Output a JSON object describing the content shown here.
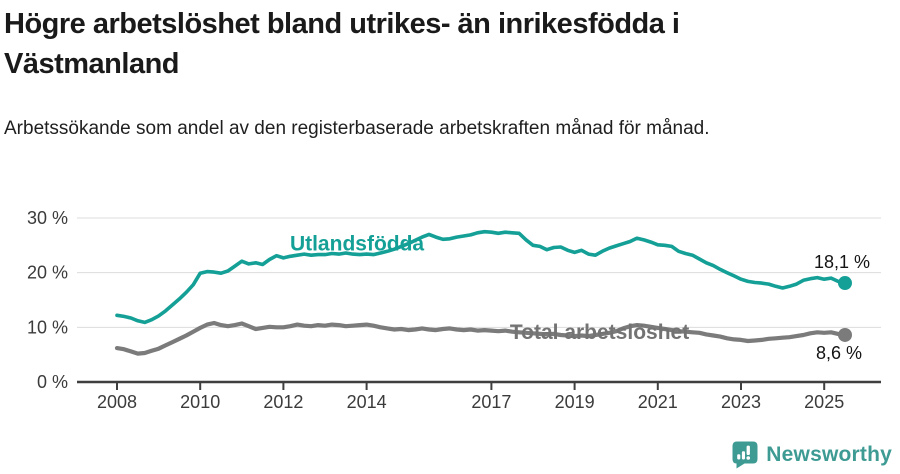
{
  "title": "Högre arbetslöshet bland utrikes- än inrikesfödda i Västmanland",
  "subtitle": "Arbetssökande som andel av den registerbaserade arbetskraften månad för månad.",
  "footer": {
    "brand": "Newsworthy",
    "logo_icon": "newsworthy-chart-bubble-icon"
  },
  "colors": {
    "foreign_born_series": "#14a096",
    "total_series": "#7b7b7b",
    "grid": "#dcdcdc",
    "axis": "#3f3f3f",
    "text": "#1a1a1a",
    "brand": "#3e9b94"
  },
  "chart_data": {
    "type": "line",
    "title": "Högre arbetslöshet bland utrikes- än inrikesfödda i Västmanland",
    "subtitle": "Arbetssökande som andel av den registerbaserade arbetskraften månad för månad.",
    "unit": "%",
    "x_start_year": 2008,
    "x_step_months": 2,
    "x_ticks": [
      2008,
      2010,
      2012,
      2014,
      2017,
      2019,
      2021,
      2023,
      2025
    ],
    "y_ticks": [
      {
        "value": 30,
        "label": "30 %"
      },
      {
        "value": 20,
        "label": "20 %"
      },
      {
        "value": 10,
        "label": "10 %"
      },
      {
        "value": 0,
        "label": "0 %"
      }
    ],
    "ylim": [
      0,
      32
    ],
    "grid": "horizontal",
    "legend": "inline-labels",
    "series": [
      {
        "name": "Utlandsfödda",
        "color": "#14a096",
        "end_label": "18,1 %",
        "end_value": 18.1,
        "label_pos": {
          "year": 2013.77,
          "pct": 24.1
        },
        "values": [
          12.2,
          12.0,
          11.7,
          11.2,
          10.9,
          11.4,
          12.1,
          13.0,
          14.1,
          15.2,
          16.4,
          17.8,
          19.9,
          20.2,
          20.1,
          19.9,
          20.3,
          21.2,
          22.1,
          21.6,
          21.8,
          21.5,
          22.4,
          23.1,
          22.7,
          23.0,
          23.2,
          23.4,
          23.2,
          23.3,
          23.3,
          23.5,
          23.4,
          23.6,
          23.4,
          23.3,
          23.4,
          23.3,
          23.6,
          23.9,
          24.3,
          24.8,
          25.3,
          25.9,
          26.5,
          27.0,
          26.5,
          26.1,
          26.2,
          26.5,
          26.7,
          26.9,
          27.3,
          27.5,
          27.4,
          27.2,
          27.4,
          27.3,
          27.2,
          26.0,
          25.0,
          24.8,
          24.2,
          24.6,
          24.7,
          24.1,
          23.7,
          24.1,
          23.4,
          23.2,
          23.9,
          24.5,
          24.9,
          25.3,
          25.7,
          26.3,
          26.0,
          25.6,
          25.1,
          25.0,
          24.8,
          23.9,
          23.5,
          23.2,
          22.5,
          21.8,
          21.3,
          20.6,
          20.0,
          19.4,
          18.8,
          18.4,
          18.2,
          18.1,
          17.9,
          17.5,
          17.2,
          17.5,
          17.9,
          18.6,
          18.9,
          19.1,
          18.8,
          19.0,
          18.4,
          18.1
        ]
      },
      {
        "name": "Total arbetslöshet",
        "color": "#7b7b7b",
        "end_label": "8,6 %",
        "end_value": 8.6,
        "label_pos": {
          "year": 2019.6,
          "pct": 7.85
        },
        "values": [
          6.2,
          6.0,
          5.6,
          5.2,
          5.3,
          5.7,
          6.1,
          6.7,
          7.3,
          7.9,
          8.5,
          9.2,
          9.9,
          10.5,
          10.8,
          10.4,
          10.2,
          10.4,
          10.7,
          10.2,
          9.7,
          9.9,
          10.1,
          10.0,
          10.0,
          10.2,
          10.5,
          10.3,
          10.2,
          10.4,
          10.3,
          10.5,
          10.4,
          10.2,
          10.3,
          10.4,
          10.5,
          10.3,
          10.0,
          9.8,
          9.6,
          9.7,
          9.5,
          9.6,
          9.8,
          9.6,
          9.5,
          9.7,
          9.8,
          9.6,
          9.5,
          9.6,
          9.4,
          9.5,
          9.4,
          9.3,
          9.4,
          9.2,
          9.1,
          9.0,
          8.9,
          8.8,
          8.7,
          8.8,
          8.6,
          8.5,
          8.4,
          8.5,
          8.4,
          8.6,
          8.8,
          9.0,
          9.3,
          9.8,
          10.2,
          10.4,
          10.3,
          10.1,
          9.9,
          9.7,
          9.5,
          9.3,
          9.2,
          9.1,
          9.0,
          8.7,
          8.5,
          8.3,
          8.0,
          7.8,
          7.7,
          7.5,
          7.6,
          7.7,
          7.9,
          8.0,
          8.1,
          8.2,
          8.4,
          8.6,
          8.9,
          9.1,
          9.0,
          9.1,
          8.8,
          8.6
        ]
      }
    ]
  }
}
